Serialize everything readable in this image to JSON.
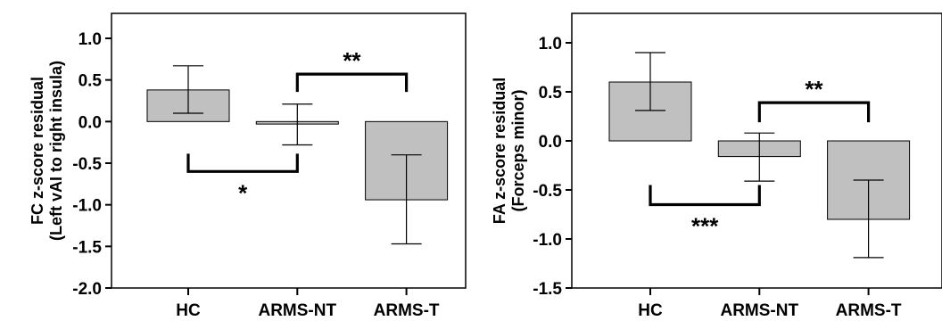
{
  "chart_data": [
    {
      "type": "bar",
      "categories": [
        "HC",
        "ARMS-NT",
        "ARMS-T"
      ],
      "values": [
        0.38,
        -0.03,
        -0.94
      ],
      "error_low": [
        0.1,
        -0.28,
        -1.47
      ],
      "error_high": [
        0.67,
        0.21,
        -0.4
      ],
      "ylabel": [
        "FC z-score residual",
        "(Left vAI to right insula)"
      ],
      "ylim": [
        -2.0,
        1.3
      ],
      "yticks": [
        1.0,
        0.5,
        0.0,
        -0.5,
        -1.0,
        -1.5,
        -2.0
      ],
      "ytick_labels": [
        "1.0",
        "0.5",
        "0.0",
        "-0.5",
        "-1.0",
        "-1.5",
        "-2.0"
      ],
      "bar_color": "#c0c0c0",
      "grid": false,
      "significance": [
        {
          "from": "ARMS-NT",
          "to": "ARMS-T",
          "label": "**",
          "side": "above",
          "level": 0.57
        },
        {
          "from": "HC",
          "to": "ARMS-NT",
          "label": "*",
          "side": "below",
          "level": -0.6
        }
      ]
    },
    {
      "type": "bar",
      "categories": [
        "HC",
        "ARMS-NT",
        "ARMS-T"
      ],
      "values": [
        0.6,
        -0.16,
        -0.8
      ],
      "error_low": [
        0.31,
        -0.41,
        -1.19
      ],
      "error_high": [
        0.9,
        0.08,
        -0.4
      ],
      "ylabel": [
        "FA z-score residual",
        "(Forceps minor)"
      ],
      "ylim": [
        -1.5,
        1.3
      ],
      "yticks": [
        1.0,
        0.5,
        0.0,
        -0.5,
        -1.0,
        -1.5
      ],
      "ytick_labels": [
        "1.0",
        "0.5",
        "0.0",
        "-0.5",
        "-1.0",
        "-1.5"
      ],
      "bar_color": "#c0c0c0",
      "grid": false,
      "significance": [
        {
          "from": "ARMS-NT",
          "to": "ARMS-T",
          "label": "**",
          "side": "above",
          "level": 0.39
        },
        {
          "from": "HC",
          "to": "ARMS-NT",
          "label": "***",
          "side": "below",
          "level": -0.65
        }
      ]
    }
  ]
}
